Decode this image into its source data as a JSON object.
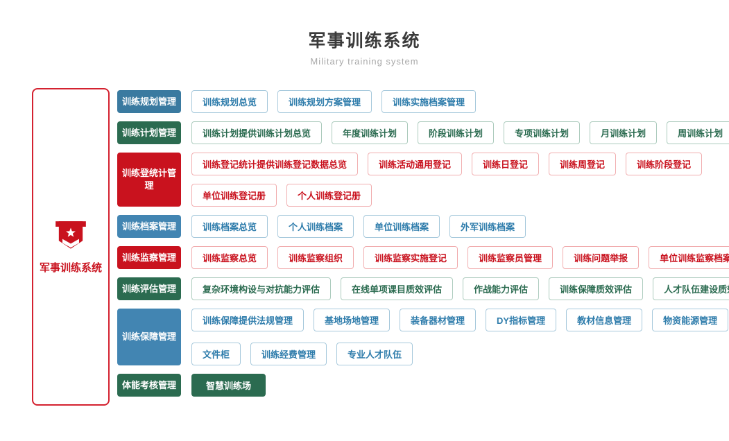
{
  "page": {
    "title": "军事训练系统",
    "subtitle": "Military training system"
  },
  "sidebar": {
    "label": "军事训练系统",
    "icon": "military-badge-icon"
  },
  "colors": {
    "red": "#c9121e",
    "red_outline": "#f1adaf",
    "green": "#2b6b50",
    "green_outline": "#accbbd",
    "blue": "#3a7aa0",
    "blue_light": "#4285b2",
    "blue_text": "#2e7cab",
    "blue_outline": "#a7c9dc",
    "panel_border": "#d42230",
    "title_text": "#3a3a3a",
    "subtitle_text": "#a8a8a8"
  },
  "rows": [
    {
      "id": "planning",
      "theme": "blue",
      "category": "训练规划管理",
      "lines": [
        [
          {
            "label": "训练规划总览"
          },
          {
            "label": "训练规划方案管理"
          },
          {
            "label": "训练实施档案管理"
          }
        ]
      ]
    },
    {
      "id": "plans",
      "theme": "green",
      "category": "训练计划管理",
      "lines": [
        [
          {
            "label": "训练计划提供训练计划总览"
          },
          {
            "label": "年度训练计划"
          },
          {
            "label": "阶段训练计划"
          },
          {
            "label": "专项训练计划"
          },
          {
            "label": "月训练计划"
          },
          {
            "label": "周训练计划"
          }
        ]
      ]
    },
    {
      "id": "registration",
      "theme": "red",
      "category": "训练登统计管理",
      "lines": [
        [
          {
            "label": "训练登记统计提供训练登记数据总览"
          },
          {
            "label": "训练活动通用登记"
          },
          {
            "label": "训练日登记"
          },
          {
            "label": "训练周登记"
          },
          {
            "label": "训练阶段登记"
          }
        ],
        [
          {
            "label": "单位训练登记册"
          },
          {
            "label": "个人训练登记册"
          }
        ]
      ]
    },
    {
      "id": "archives",
      "theme": "blue2",
      "category": "训练档案管理",
      "lines": [
        [
          {
            "label": "训练档案总览"
          },
          {
            "label": "个人训练档案"
          },
          {
            "label": "单位训练档案"
          },
          {
            "label": "外军训练档案"
          }
        ]
      ]
    },
    {
      "id": "supervision",
      "theme": "red",
      "category": "训练监察管理",
      "lines": [
        [
          {
            "label": "训练监察总览"
          },
          {
            "label": "训练监察组织"
          },
          {
            "label": "训练监察实施登记"
          },
          {
            "label": "训练监察员管理"
          },
          {
            "label": "训练问题举报"
          },
          {
            "label": "单位训练监察档案"
          }
        ]
      ]
    },
    {
      "id": "evaluation",
      "theme": "green",
      "category": "训练评估管理",
      "lines": [
        [
          {
            "label": "复杂环境构设与对抗能力评估"
          },
          {
            "label": "在线单项课目质效评估"
          },
          {
            "label": "作战能力评估"
          },
          {
            "label": "训练保障质效评估"
          },
          {
            "label": "人才队伍建设质效评估"
          }
        ]
      ]
    },
    {
      "id": "support",
      "theme": "blue2",
      "category": "训练保障管理",
      "lines": [
        [
          {
            "label": "训练保障提供法规管理"
          },
          {
            "label": "基地场地管理"
          },
          {
            "label": "装备器材管理"
          },
          {
            "label": "DY指标管理"
          },
          {
            "label": "教材信息管理"
          },
          {
            "label": "物资能源管理"
          }
        ],
        [
          {
            "label": "文件柜"
          },
          {
            "label": "训练经费管理"
          },
          {
            "label": "专业人才队伍"
          }
        ]
      ]
    },
    {
      "id": "physical",
      "theme": "green",
      "category": "体能考核管理",
      "lines": [
        [
          {
            "label": "智慧训练场",
            "solid": true
          }
        ]
      ]
    }
  ]
}
